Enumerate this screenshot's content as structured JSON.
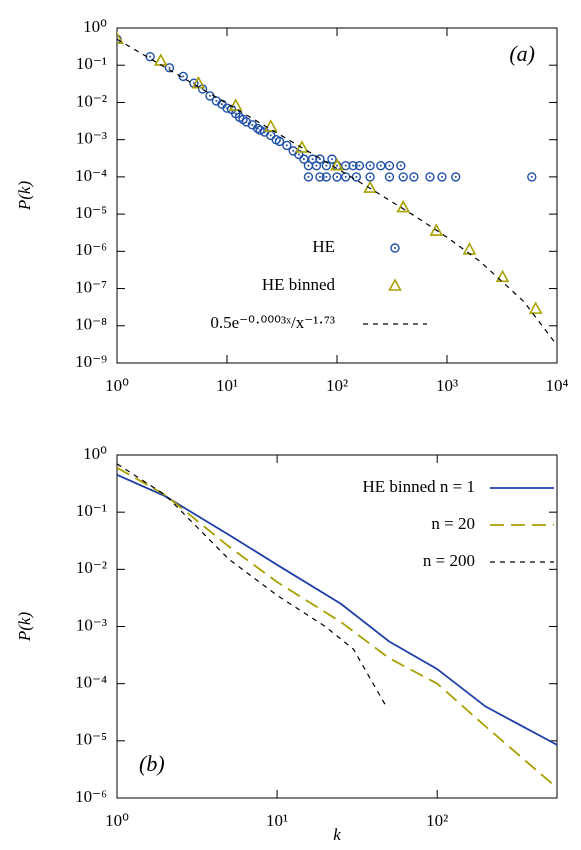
{
  "chart_data": [
    {
      "type": "scatter",
      "annotation": "(a)",
      "annotation_position": "upper right",
      "ylabel": "P(k)",
      "xscale": "log",
      "yscale": "log",
      "legend": "center",
      "xlim": [
        1,
        10000
      ],
      "xticks": [
        {
          "value": 1,
          "label": "10⁰"
        },
        {
          "value": 10,
          "label": "10¹"
        },
        {
          "value": 100,
          "label": "10²"
        },
        {
          "value": 1000,
          "label": "10³"
        },
        {
          "value": 10000,
          "label": "10⁴"
        }
      ],
      "ylim": [
        1e-09,
        1
      ],
      "yticks": [
        {
          "value": 1,
          "label": "10⁰"
        },
        {
          "value": 0.1,
          "label": "10⁻¹"
        },
        {
          "value": 0.01,
          "label": "10⁻²"
        },
        {
          "value": 0.001,
          "label": "10⁻³"
        },
        {
          "value": 0.0001,
          "label": "10⁻⁴"
        },
        {
          "value": 1e-05,
          "label": "10⁻⁵"
        },
        {
          "value": 1e-06,
          "label": "10⁻⁶"
        },
        {
          "value": 1e-07,
          "label": "10⁻⁷"
        },
        {
          "value": 1e-08,
          "label": "10⁻⁸"
        },
        {
          "value": 1e-09,
          "label": "10⁻⁹"
        }
      ],
      "series": [
        {
          "name": "HE",
          "color": "#1f4fa8",
          "marker": "circle",
          "x": [
            1,
            2,
            3,
            4,
            5,
            6,
            7,
            8,
            9,
            10,
            11,
            12,
            13,
            14,
            15,
            17,
            19,
            20,
            22,
            25,
            28,
            30,
            35,
            40,
            45,
            50,
            55,
            60,
            65,
            70,
            80,
            90,
            100,
            120,
            140,
            160,
            200,
            250,
            300,
            380,
            55,
            70,
            80,
            100,
            120,
            150,
            200,
            300,
            400,
            500,
            700,
            900,
            1200,
            5900
          ],
          "values": [
            0.5,
            0.17,
            0.085,
            0.05,
            0.033,
            0.023,
            0.015,
            0.011,
            0.009,
            0.007,
            0.0065,
            0.005,
            0.004,
            0.0035,
            0.003,
            0.0025,
            0.002,
            0.0018,
            0.0016,
            0.0013,
            0.001,
            0.0009,
            0.0007,
            0.0005,
            0.0004,
            0.0003,
            0.0002,
            0.0003,
            0.0002,
            0.0003,
            0.0002,
            0.0003,
            0.0002,
            0.0002,
            0.0002,
            0.0002,
            0.0002,
            0.0002,
            0.0002,
            0.0002,
            0.0001,
            0.0001,
            0.0001,
            0.0001,
            0.0001,
            0.0001,
            0.0001,
            0.0001,
            0.0001,
            0.0001,
            0.0001,
            0.0001,
            0.0001,
            0.0001
          ]
        },
        {
          "name": "HE binned",
          "color": "#a8a000",
          "marker": "triangle",
          "x": [
            1,
            2.5,
            5.5,
            12,
            25,
            48,
            100,
            200,
            400,
            800,
            1600,
            3200,
            6400
          ],
          "values": [
            0.5,
            0.13,
            0.032,
            0.008,
            0.0022,
            0.0006,
            0.0002,
            5e-05,
            1.5e-05,
            3.5e-06,
            1.1e-06,
            2e-07,
            2.8e-08
          ]
        },
        {
          "name": "0.5e⁻⁰·⁰⁰⁰³ˣ/x⁻¹·⁷³",
          "color": "#000000",
          "marker": "none",
          "dash": "short",
          "x": [
            1,
            2,
            5,
            10,
            20,
            50,
            100,
            200,
            500,
            1000,
            2000,
            5000,
            10000
          ],
          "values": [
            0.4999,
            0.1506,
            0.0309,
            0.00931,
            0.0028,
            0.000566,
            0.000168,
            4.92e-05,
            9.2e-06,
            2.39e-06,
            5.34e-07,
            4.46e-08,
            2.99e-09
          ]
        }
      ]
    },
    {
      "type": "line",
      "annotation": "(b)",
      "annotation_position": "lower left",
      "ylabel": "P(k)",
      "xlabel": "k",
      "xscale": "log",
      "yscale": "log",
      "legend": "upper right",
      "xlim": [
        1,
        560
      ],
      "xticks": [
        {
          "value": 1,
          "label": "10⁰"
        },
        {
          "value": 10,
          "label": "10¹"
        },
        {
          "value": 100,
          "label": "10²"
        }
      ],
      "ylim": [
        1e-06,
        1
      ],
      "yticks": [
        {
          "value": 1,
          "label": "10⁰"
        },
        {
          "value": 0.1,
          "label": "10⁻¹"
        },
        {
          "value": 0.01,
          "label": "10⁻²"
        },
        {
          "value": 0.001,
          "label": "10⁻³"
        },
        {
          "value": 0.0001,
          "label": "10⁻⁴"
        },
        {
          "value": 1e-05,
          "label": "10⁻⁵"
        },
        {
          "value": 1e-06,
          "label": "10⁻⁶"
        }
      ],
      "series": [
        {
          "name": "HE binned n = 1",
          "color": "#1f3fa8",
          "dash": "solid",
          "x": [
            1,
            2,
            5,
            10,
            25,
            50,
            100,
            200,
            560
          ],
          "values": [
            0.45,
            0.19,
            0.04,
            0.012,
            0.0025,
            0.00055,
            0.00018,
            4e-05,
            8.5e-06
          ]
        },
        {
          "name": "n = 20",
          "color": "#a8a000",
          "dash": "long",
          "x": [
            1,
            2,
            5,
            10,
            25,
            50,
            100,
            200,
            560
          ],
          "values": [
            0.6,
            0.2,
            0.025,
            0.006,
            0.0012,
            0.00028,
            0.0001,
            1.8e-05,
            1.5e-06
          ]
        },
        {
          "name": "n = 200",
          "color": "#000000",
          "dash": "short",
          "x": [
            1,
            2,
            5,
            10,
            20,
            30,
            48
          ],
          "values": [
            0.7,
            0.2,
            0.015,
            0.0035,
            0.001,
            0.0004,
            4e-05
          ]
        }
      ]
    }
  ]
}
